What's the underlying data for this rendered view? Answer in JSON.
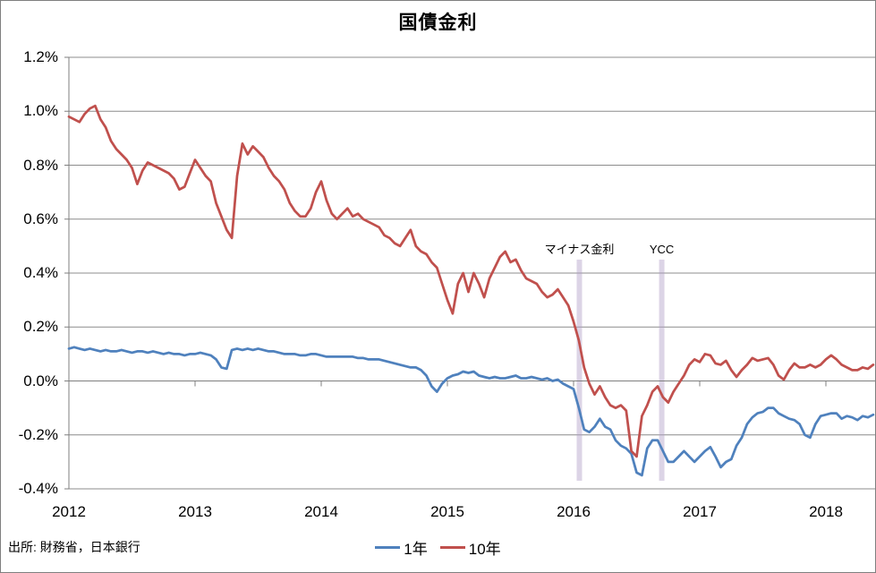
{
  "title": "国債金利",
  "source_note": "出所: 財務省，日本銀行",
  "colors": {
    "series_1y": "#4F81BD",
    "series_10y": "#C0504D",
    "gridline": "#8C8C8C",
    "axis": "#7F7F7F",
    "event_band": "#B1A0C7",
    "text": "#000000",
    "background": "#FFFFFF"
  },
  "chart_data": {
    "type": "line",
    "title": "国債金利",
    "xlabel": "",
    "ylabel": "",
    "unit": "%",
    "grid": "horizontal",
    "legend_position": "bottom",
    "ylim": [
      -0.4,
      1.2
    ],
    "y_tick_step": 0.2,
    "y_tick_labels": [
      "1.2%",
      "1.0%",
      "0.8%",
      "0.6%",
      "0.4%",
      "0.2%",
      "0.0%",
      "-0.2%",
      "-0.4%"
    ],
    "xlim": [
      2012.0,
      2018.39
    ],
    "x_tick_labels": [
      "2012",
      "2013",
      "2014",
      "2015",
      "2016",
      "2017",
      "2018"
    ],
    "x_tick_values": [
      2012,
      2013,
      2014,
      2015,
      2016,
      2017,
      2018
    ],
    "x_start": 2012.0,
    "x_step_years": 0.0416667,
    "annotations": [
      {
        "id": "negative-rate",
        "label": "マイナス金利",
        "x": 2016.046,
        "type": "vertical-band",
        "band_top": 0.45,
        "band_bottom": -0.37
      },
      {
        "id": "ycc",
        "label": "YCC",
        "x": 2016.699,
        "type": "vertical-band",
        "band_top": 0.45,
        "band_bottom": -0.37
      }
    ],
    "series": [
      {
        "name": "1年",
        "color": "#4F81BD",
        "values": [
          0.12,
          0.125,
          0.12,
          0.115,
          0.12,
          0.115,
          0.11,
          0.115,
          0.11,
          0.11,
          0.115,
          0.11,
          0.105,
          0.11,
          0.11,
          0.105,
          0.11,
          0.105,
          0.1,
          0.105,
          0.1,
          0.1,
          0.095,
          0.1,
          0.1,
          0.105,
          0.1,
          0.095,
          0.08,
          0.05,
          0.045,
          0.115,
          0.12,
          0.115,
          0.12,
          0.115,
          0.12,
          0.115,
          0.11,
          0.11,
          0.105,
          0.1,
          0.1,
          0.1,
          0.095,
          0.095,
          0.1,
          0.1,
          0.095,
          0.09,
          0.09,
          0.09,
          0.09,
          0.09,
          0.09,
          0.085,
          0.085,
          0.08,
          0.08,
          0.08,
          0.075,
          0.07,
          0.065,
          0.06,
          0.055,
          0.05,
          0.05,
          0.04,
          0.02,
          -0.02,
          -0.04,
          -0.01,
          0.01,
          0.02,
          0.025,
          0.035,
          0.03,
          0.035,
          0.02,
          0.015,
          0.01,
          0.015,
          0.01,
          0.01,
          0.015,
          0.02,
          0.01,
          0.01,
          0.015,
          0.01,
          0.005,
          0.01,
          0.0,
          0.005,
          -0.01,
          -0.02,
          -0.03,
          -0.1,
          -0.18,
          -0.19,
          -0.17,
          -0.14,
          -0.17,
          -0.18,
          -0.22,
          -0.24,
          -0.25,
          -0.27,
          -0.34,
          -0.35,
          -0.25,
          -0.22,
          -0.22,
          -0.26,
          -0.3,
          -0.3,
          -0.28,
          -0.26,
          -0.28,
          -0.3,
          -0.28,
          -0.26,
          -0.245,
          -0.28,
          -0.32,
          -0.3,
          -0.29,
          -0.24,
          -0.21,
          -0.16,
          -0.135,
          -0.12,
          -0.115,
          -0.1,
          -0.1,
          -0.12,
          -0.13,
          -0.14,
          -0.145,
          -0.16,
          -0.2,
          -0.21,
          -0.16,
          -0.13,
          -0.125,
          -0.12,
          -0.12,
          -0.14,
          -0.13,
          -0.135,
          -0.145,
          -0.13,
          -0.135,
          -0.125
        ]
      },
      {
        "name": "10年",
        "color": "#C0504D",
        "values": [
          0.98,
          0.97,
          0.96,
          0.99,
          1.01,
          1.02,
          0.97,
          0.94,
          0.89,
          0.86,
          0.84,
          0.82,
          0.79,
          0.73,
          0.78,
          0.81,
          0.8,
          0.79,
          0.78,
          0.77,
          0.75,
          0.71,
          0.72,
          0.77,
          0.82,
          0.79,
          0.76,
          0.74,
          0.66,
          0.61,
          0.56,
          0.53,
          0.76,
          0.88,
          0.84,
          0.87,
          0.85,
          0.83,
          0.79,
          0.76,
          0.74,
          0.71,
          0.66,
          0.63,
          0.61,
          0.61,
          0.64,
          0.7,
          0.74,
          0.67,
          0.62,
          0.6,
          0.62,
          0.64,
          0.61,
          0.62,
          0.6,
          0.59,
          0.58,
          0.57,
          0.54,
          0.53,
          0.51,
          0.5,
          0.53,
          0.56,
          0.5,
          0.48,
          0.47,
          0.44,
          0.42,
          0.36,
          0.3,
          0.25,
          0.36,
          0.4,
          0.33,
          0.4,
          0.36,
          0.31,
          0.38,
          0.42,
          0.46,
          0.48,
          0.44,
          0.45,
          0.41,
          0.38,
          0.37,
          0.36,
          0.33,
          0.31,
          0.32,
          0.34,
          0.31,
          0.28,
          0.22,
          0.15,
          0.05,
          -0.01,
          -0.05,
          -0.02,
          -0.06,
          -0.09,
          -0.1,
          -0.09,
          -0.11,
          -0.26,
          -0.28,
          -0.13,
          -0.09,
          -0.04,
          -0.02,
          -0.06,
          -0.08,
          -0.04,
          -0.01,
          0.02,
          0.06,
          0.08,
          0.07,
          0.1,
          0.095,
          0.065,
          0.06,
          0.075,
          0.04,
          0.015,
          0.04,
          0.06,
          0.085,
          0.075,
          0.08,
          0.085,
          0.06,
          0.02,
          0.005,
          0.04,
          0.065,
          0.05,
          0.05,
          0.06,
          0.05,
          0.06,
          0.08,
          0.095,
          0.08,
          0.06,
          0.05,
          0.04,
          0.04,
          0.05,
          0.045,
          0.06
        ]
      }
    ]
  }
}
